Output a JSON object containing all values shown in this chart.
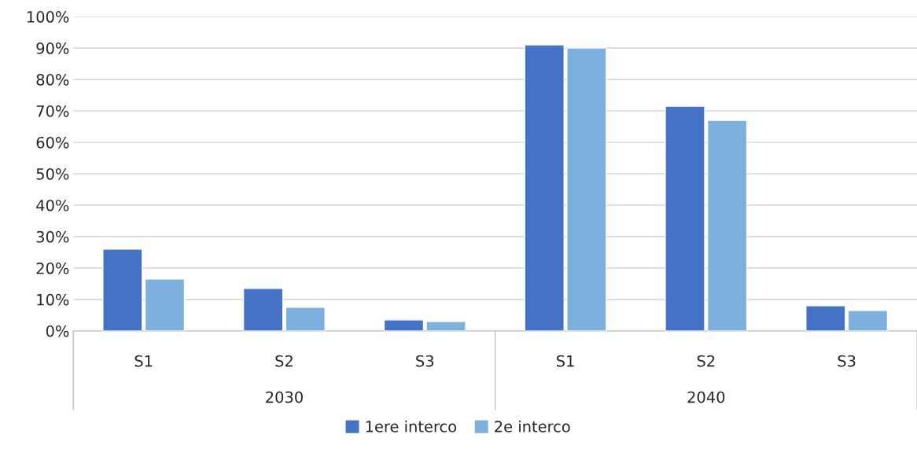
{
  "chart_data": {
    "type": "bar",
    "categories": [
      "S1",
      "S2",
      "S3",
      "S1",
      "S2",
      "S3"
    ],
    "series": [
      {
        "name": "1ere interco",
        "color": "#4472c4",
        "values": [
          26,
          13.5,
          3.5,
          91,
          71.5,
          8
        ]
      },
      {
        "name": "2e interco",
        "color": "#7eb0de",
        "values": [
          16.5,
          7.5,
          3,
          90,
          67,
          6.5
        ]
      }
    ],
    "ylim": [
      0,
      100
    ],
    "yticks": [
      {
        "value": 0,
        "label": "0%"
      },
      {
        "value": 10,
        "label": "10%"
      },
      {
        "value": 20,
        "label": "20%"
      },
      {
        "value": 30,
        "label": "30%"
      },
      {
        "value": 40,
        "label": "40%"
      },
      {
        "value": 50,
        "label": "50%"
      },
      {
        "value": 60,
        "label": "60%"
      },
      {
        "value": 70,
        "label": "70%"
      },
      {
        "value": 80,
        "label": "80%"
      },
      {
        "value": 90,
        "label": "90%"
      },
      {
        "value": 100,
        "label": "100%"
      }
    ],
    "annotations": [
      "2030",
      "2040"
    ],
    "grid": "y",
    "legend": "bottom"
  }
}
